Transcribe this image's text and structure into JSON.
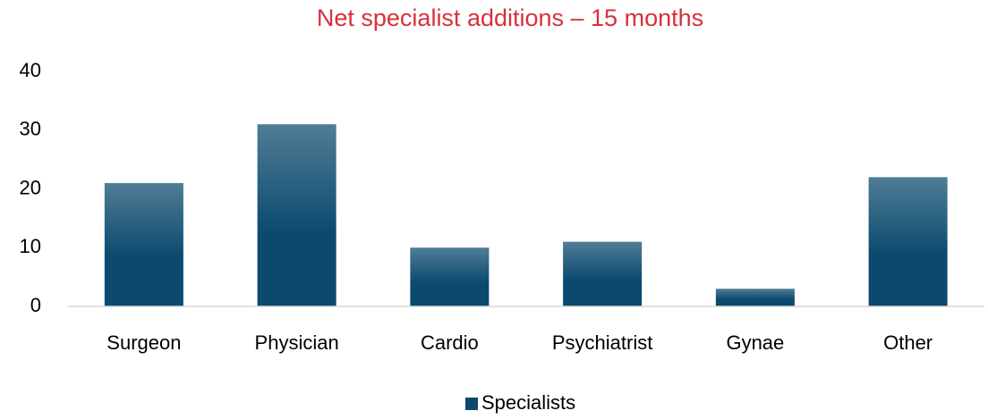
{
  "chart_data": {
    "type": "bar",
    "title": "Net specialist additions – 15 months",
    "categories": [
      "Surgeon",
      "Physician",
      "Cardio",
      "Psychiatrist",
      "Gynae",
      "Other"
    ],
    "series": [
      {
        "name": "Specialists",
        "color": "#0b4a6e",
        "values": [
          21,
          31,
          10,
          11,
          3,
          22
        ]
      }
    ],
    "ylim": [
      0,
      40
    ],
    "yticks": [
      0,
      10,
      20,
      30,
      40
    ],
    "grid": false,
    "legend": "bottom"
  }
}
